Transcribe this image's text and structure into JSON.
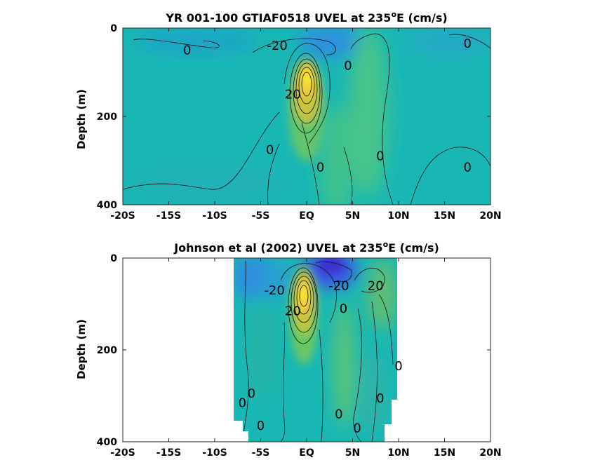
{
  "chart_data": [
    {
      "type": "heatmap",
      "title": "YR 001-100 GTIAF0518 UVEL at 235",
      "title_superscript": "o",
      "title_suffix": "E (cm/s)",
      "ylabel": "Depth (m)",
      "xlabel": "",
      "xlim": [
        -20,
        20
      ],
      "ylim": [
        400,
        0
      ],
      "y_reversed": true,
      "xticks": [
        -20,
        -15,
        -10,
        -5,
        0,
        5,
        10,
        15,
        20
      ],
      "xticklabels": [
        "-20S",
        "-15S",
        "-10S",
        "-5S",
        "EQ",
        "5N",
        "10N",
        "15N",
        "20N"
      ],
      "yticks": [
        0,
        200,
        400
      ],
      "yticklabels": [
        "0",
        "200",
        "400"
      ],
      "data_extent": {
        "lat": [
          -20,
          20
        ],
        "depth_max": 385
      },
      "jet_core": {
        "lat": 0,
        "depth": 120,
        "max_cms": 100
      },
      "contour_labels": [
        {
          "text": "0",
          "lat": -13,
          "depth": 50
        },
        {
          "text": "-20",
          "lat": -3.2,
          "depth": 40
        },
        {
          "text": "0",
          "lat": 17.5,
          "depth": 35
        },
        {
          "text": "0",
          "lat": 4.5,
          "depth": 85
        },
        {
          "text": "20",
          "lat": -1.5,
          "depth": 150
        },
        {
          "text": "0",
          "lat": -4,
          "depth": 275
        },
        {
          "text": "0",
          "lat": 1.5,
          "depth": 315
        },
        {
          "text": "0",
          "lat": 8,
          "depth": 290
        },
        {
          "text": "0",
          "lat": 17.5,
          "depth": 315
        }
      ]
    },
    {
      "type": "heatmap",
      "title": "Johnson et al (2002) UVEL at 235",
      "title_superscript": "o",
      "title_suffix": "E (cm/s)",
      "ylabel": "Depth (m)",
      "xlabel": "",
      "xlim": [
        -20,
        20
      ],
      "ylim": [
        400,
        0
      ],
      "y_reversed": true,
      "xticks": [
        -20,
        -15,
        -10,
        -5,
        0,
        5,
        10,
        15,
        20
      ],
      "xticklabels": [
        "-20S",
        "-15S",
        "-10S",
        "-5S",
        "EQ",
        "5N",
        "10N",
        "15N",
        "20N"
      ],
      "yticks": [
        0,
        200,
        400
      ],
      "yticklabels": [
        "0",
        "200",
        "400"
      ],
      "data_extent": {
        "lat": [
          -8,
          10
        ],
        "depth_max": 400
      },
      "jet_core": {
        "lat": 0,
        "depth": 90,
        "max_cms": 110
      },
      "contour_labels": [
        {
          "text": "-20",
          "lat": -3.5,
          "depth": 70
        },
        {
          "text": "-20",
          "lat": 3.5,
          "depth": 60
        },
        {
          "text": "20",
          "lat": 7.5,
          "depth": 60
        },
        {
          "text": "0",
          "lat": 4,
          "depth": 110
        },
        {
          "text": "20",
          "lat": -1.5,
          "depth": 115
        },
        {
          "text": "0",
          "lat": 10,
          "depth": 235
        },
        {
          "text": "0",
          "lat": -6,
          "depth": 295
        },
        {
          "text": "0",
          "lat": -7,
          "depth": 315
        },
        {
          "text": "0",
          "lat": 8,
          "depth": 305
        },
        {
          "text": "0",
          "lat": 3.5,
          "depth": 340
        },
        {
          "text": "0",
          "lat": 5.5,
          "depth": 370
        },
        {
          "text": "0",
          "lat": -5,
          "depth": 365
        }
      ]
    }
  ]
}
